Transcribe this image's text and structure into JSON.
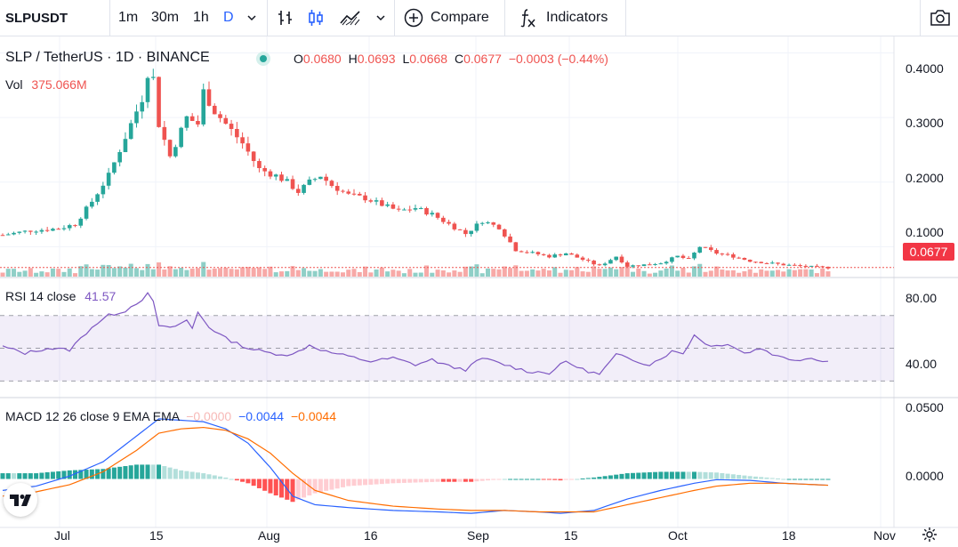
{
  "toolbar": {
    "symbol": "SLPUSDT",
    "timeframes": [
      "1m",
      "30m",
      "1h",
      "D"
    ],
    "active_timeframe": "D",
    "compare_label": "Compare",
    "indicators_label": "Indicators",
    "icons": [
      "chevron-down-icon",
      "bar-chart-icon",
      "candle-chart-icon",
      "area-chart-icon",
      "plus-circle-icon",
      "fx-icon",
      "camera-icon"
    ]
  },
  "legend": {
    "pair": "SLP / TetherUS · 1D · BINANCE",
    "o_label": "O",
    "o_value": "0.0680",
    "h_label": "H",
    "h_value": "0.0693",
    "l_label": "L",
    "l_value": "0.0668",
    "c_label": "C",
    "c_value": "0.0677",
    "change": "−0.0003 (−0.44%)",
    "vol_label": "Vol",
    "vol_value": "375.066M"
  },
  "rsi_legend": {
    "label": "RSI 14 close",
    "value": "41.57"
  },
  "macd_legend": {
    "label": "MACD 12 26 close 9 EMA EMA",
    "hist": "−0.0000",
    "macd": "−0.0044",
    "signal": "−0.0044"
  },
  "price_axis": [
    "0.4000",
    "0.3000",
    "0.2000",
    "0.1000"
  ],
  "last_price": "0.0677",
  "rsi_axis": [
    "80.00",
    "40.00"
  ],
  "macd_axis": [
    "0.0500",
    "0.0000"
  ],
  "time_axis": [
    "Jul",
    "15",
    "Aug",
    "16",
    "Sep",
    "15",
    "Oct",
    "18",
    "Nov"
  ],
  "colors": {
    "up": "#26a69a",
    "down": "#ef5350",
    "rsi": "#7e57c2",
    "macd": "#2962ff",
    "signal": "#ff6d00",
    "upVol": "#8fcfc7",
    "downVol": "#f7a9a7"
  },
  "chart_data": {
    "type": "candlestick",
    "close_trajectory": [
      [
        0,
        0.118
      ],
      [
        5,
        0.125
      ],
      [
        10,
        0.128
      ],
      [
        13,
        0.135
      ],
      [
        16,
        0.17
      ],
      [
        19,
        0.21
      ],
      [
        22,
        0.27
      ],
      [
        25,
        0.33
      ],
      [
        26,
        0.37
      ],
      [
        27,
        0.36
      ],
      [
        28,
        0.29
      ],
      [
        30,
        0.24
      ],
      [
        33,
        0.3
      ],
      [
        35,
        0.29
      ],
      [
        36,
        0.34
      ],
      [
        38,
        0.31
      ],
      [
        40,
        0.29
      ],
      [
        43,
        0.26
      ],
      [
        46,
        0.22
      ],
      [
        49,
        0.21
      ],
      [
        51,
        0.2
      ],
      [
        53,
        0.185
      ],
      [
        55,
        0.2
      ],
      [
        57,
        0.21
      ],
      [
        59,
        0.195
      ],
      [
        62,
        0.18
      ],
      [
        65,
        0.175
      ],
      [
        68,
        0.165
      ],
      [
        71,
        0.155
      ],
      [
        74,
        0.16
      ],
      [
        77,
        0.15
      ],
      [
        80,
        0.135
      ],
      [
        83,
        0.12
      ],
      [
        86,
        0.14
      ],
      [
        89,
        0.13
      ],
      [
        92,
        0.095
      ],
      [
        95,
        0.09
      ],
      [
        98,
        0.085
      ],
      [
        101,
        0.09
      ],
      [
        104,
        0.08
      ],
      [
        107,
        0.07
      ],
      [
        110,
        0.085
      ],
      [
        112,
        0.07
      ],
      [
        115,
        0.072
      ],
      [
        118,
        0.075
      ],
      [
        121,
        0.085
      ],
      [
        123,
        0.08
      ],
      [
        125,
        0.1
      ],
      [
        128,
        0.09
      ],
      [
        131,
        0.085
      ],
      [
        134,
        0.078
      ],
      [
        137,
        0.075
      ],
      [
        140,
        0.072
      ],
      [
        143,
        0.07
      ],
      [
        146,
        0.068
      ],
      [
        148,
        0.0677
      ]
    ],
    "rsi_trajectory": [
      [
        0,
        51
      ],
      [
        4,
        47
      ],
      [
        8,
        50
      ],
      [
        12,
        49
      ],
      [
        16,
        63
      ],
      [
        19,
        70
      ],
      [
        22,
        73
      ],
      [
        25,
        80
      ],
      [
        26,
        83
      ],
      [
        27,
        78
      ],
      [
        28,
        64
      ],
      [
        30,
        62
      ],
      [
        33,
        67
      ],
      [
        34,
        62
      ],
      [
        35,
        72
      ],
      [
        37,
        63
      ],
      [
        40,
        56
      ],
      [
        44,
        50
      ],
      [
        48,
        47
      ],
      [
        52,
        46
      ],
      [
        55,
        52
      ],
      [
        58,
        48
      ],
      [
        62,
        45
      ],
      [
        66,
        42
      ],
      [
        70,
        44
      ],
      [
        74,
        40
      ],
      [
        77,
        43
      ],
      [
        80,
        39
      ],
      [
        83,
        37
      ],
      [
        86,
        44
      ],
      [
        90,
        40
      ],
      [
        94,
        36
      ],
      [
        98,
        35
      ],
      [
        101,
        42
      ],
      [
        104,
        37
      ],
      [
        107,
        34
      ],
      [
        110,
        46
      ],
      [
        113,
        43
      ],
      [
        116,
        40
      ],
      [
        120,
        48
      ],
      [
        122,
        47
      ],
      [
        124,
        58
      ],
      [
        127,
        51
      ],
      [
        130,
        53
      ],
      [
        133,
        47
      ],
      [
        136,
        50
      ],
      [
        139,
        45
      ],
      [
        142,
        43
      ],
      [
        145,
        44
      ],
      [
        148,
        42
      ]
    ],
    "macd_trajectory": [
      [
        0,
        -0.008
      ],
      [
        6,
        -0.005
      ],
      [
        12,
        0.002
      ],
      [
        18,
        0.012
      ],
      [
        24,
        0.03
      ],
      [
        28,
        0.042
      ],
      [
        32,
        0.041
      ],
      [
        36,
        0.04
      ],
      [
        40,
        0.035
      ],
      [
        44,
        0.025
      ],
      [
        48,
        0.008
      ],
      [
        52,
        -0.012
      ],
      [
        56,
        -0.018
      ],
      [
        62,
        -0.02
      ],
      [
        70,
        -0.022
      ],
      [
        78,
        -0.023
      ],
      [
        84,
        -0.024
      ],
      [
        90,
        -0.022
      ],
      [
        96,
        -0.023
      ],
      [
        100,
        -0.024
      ],
      [
        106,
        -0.022
      ],
      [
        112,
        -0.014
      ],
      [
        118,
        -0.008
      ],
      [
        124,
        -0.003
      ],
      [
        128,
        -0.0005
      ],
      [
        134,
        -0.001
      ],
      [
        140,
        -0.003
      ],
      [
        148,
        -0.0044
      ]
    ],
    "signal_trajectory": [
      [
        0,
        -0.012
      ],
      [
        6,
        -0.009
      ],
      [
        12,
        -0.004
      ],
      [
        18,
        0.005
      ],
      [
        24,
        0.02
      ],
      [
        28,
        0.032
      ],
      [
        32,
        0.035
      ],
      [
        36,
        0.036
      ],
      [
        40,
        0.034
      ],
      [
        44,
        0.028
      ],
      [
        48,
        0.018
      ],
      [
        52,
        0.004
      ],
      [
        56,
        -0.008
      ],
      [
        62,
        -0.015
      ],
      [
        70,
        -0.019
      ],
      [
        78,
        -0.021
      ],
      [
        84,
        -0.022
      ],
      [
        90,
        -0.022
      ],
      [
        96,
        -0.023
      ],
      [
        100,
        -0.023
      ],
      [
        106,
        -0.023
      ],
      [
        112,
        -0.018
      ],
      [
        118,
        -0.013
      ],
      [
        124,
        -0.008
      ],
      [
        128,
        -0.005
      ],
      [
        134,
        -0.003
      ],
      [
        140,
        -0.003
      ],
      [
        148,
        -0.0044
      ]
    ],
    "price_range": [
      0.055,
      0.42
    ],
    "rsi_range": [
      21,
      91
    ],
    "macd_range": [
      -0.032,
      0.055
    ],
    "rsi_bands": [
      30,
      50,
      70
    ]
  }
}
